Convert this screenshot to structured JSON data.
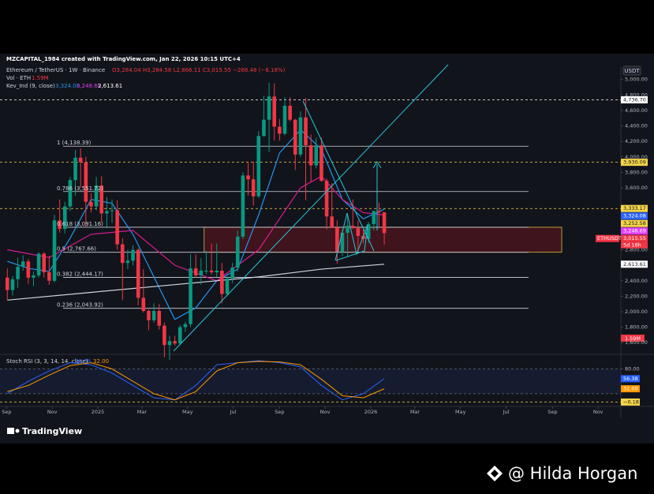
{
  "chart_data": {
    "type": "candlestick",
    "title": "MZCAPITAL_1984 created with TradingView.com, Jan 22, 2026 10:15 UTC+4",
    "symbol": "Ethereum / TetherUS · 1W · Binance",
    "ohlc_text": "O3,284.04 H3,284.58 L2,866.11 C3,015.55 −268.48 (−8.18%)",
    "volume_text": "Vol · ETH",
    "volume_value": "1.59M",
    "indicator": "Kev_Ind (9, close)",
    "indicator_values": [
      "3,324.08",
      "3,248.69",
      "2,613.61"
    ],
    "currency": "USDT",
    "ylim": [
      1470,
      5160
    ],
    "yticks": [
      {
        "value": 1600,
        "label": "1,600.00"
      },
      {
        "value": 1800,
        "label": "1,800.00"
      },
      {
        "value": 2000,
        "label": "2,000.00"
      },
      {
        "value": 2200,
        "label": "2,200.00"
      },
      {
        "value": 2400,
        "label": "2,400.00"
      },
      {
        "value": 2800,
        "label": "2,800.00"
      },
      {
        "value": 3600,
        "label": "3,600.00"
      },
      {
        "value": 3800,
        "label": "3,800.00"
      },
      {
        "value": 4000,
        "label": "4,000.00"
      },
      {
        "value": 4200,
        "label": "4,200.00"
      },
      {
        "value": 4400,
        "label": "4,400.00"
      },
      {
        "value": 4600,
        "label": "4,600.00"
      },
      {
        "value": 4800,
        "label": "4,800.00"
      },
      {
        "value": 5000,
        "label": "5,000.00"
      }
    ],
    "xlim": [
      -1.4,
      117.2
    ],
    "xticks": [
      {
        "value": -0.14,
        "label": "Sep"
      },
      {
        "value": 8.57,
        "label": "Nov"
      },
      {
        "value": 17.29,
        "label": "2025"
      },
      {
        "value": 25.71,
        "label": "Mar"
      },
      {
        "value": 34.43,
        "label": "May"
      },
      {
        "value": 43.14,
        "label": "Jul"
      },
      {
        "value": 52,
        "label": "Sep"
      },
      {
        "value": 60.71,
        "label": "Nov"
      },
      {
        "value": 69.43,
        "label": "2026"
      },
      {
        "value": 77.86,
        "label": "Mar"
      },
      {
        "value": 86.57,
        "label": "May"
      },
      {
        "value": 95.29,
        "label": "Jul"
      },
      {
        "value": 104.14,
        "label": "Sep"
      },
      {
        "value": 112.86,
        "label": "Nov"
      }
    ],
    "up_color": "#089981",
    "down_color": "#f23645",
    "candles": [
      [
        2440,
        2560,
        2150,
        2280
      ],
      [
        2280,
        2460,
        2210,
        2420
      ],
      [
        2420,
        2700,
        2310,
        2580
      ],
      [
        2580,
        2730,
        2530,
        2650
      ],
      [
        2650,
        2680,
        2360,
        2440
      ],
      [
        2440,
        2520,
        2330,
        2470
      ],
      [
        2470,
        2770,
        2440,
        2750
      ],
      [
        2750,
        2770,
        2440,
        2510
      ],
      [
        2510,
        2720,
        2350,
        2400
      ],
      [
        2400,
        3250,
        2380,
        3180
      ],
      [
        3180,
        3450,
        3020,
        3070
      ],
      [
        3070,
        3420,
        3010,
        3360
      ],
      [
        3360,
        3740,
        3300,
        3700
      ],
      [
        3700,
        4090,
        3500,
        3990
      ],
      [
        3990,
        4110,
        3600,
        3930
      ],
      [
        3930,
        4000,
        3100,
        3420
      ],
      [
        3420,
        3530,
        3280,
        3360
      ],
      [
        3360,
        3740,
        3310,
        3630
      ],
      [
        3630,
        3750,
        3160,
        3270
      ],
      [
        3270,
        3480,
        3080,
        3300
      ],
      [
        3300,
        3450,
        3150,
        3310
      ],
      [
        3310,
        3440,
        2800,
        2870
      ],
      [
        2870,
        2950,
        2150,
        2630
      ],
      [
        2630,
        2800,
        2550,
        2660
      ],
      [
        2660,
        2860,
        2600,
        2800
      ],
      [
        2800,
        2820,
        2080,
        2180
      ],
      [
        2180,
        2550,
        1990,
        2010
      ],
      [
        2010,
        2030,
        1760,
        1890
      ],
      [
        1890,
        2110,
        1860,
        2010
      ],
      [
        2010,
        2100,
        1770,
        1820
      ],
      [
        1820,
        1860,
        1410,
        1570
      ],
      [
        1570,
        1690,
        1380,
        1620
      ],
      [
        1620,
        1690,
        1560,
        1590
      ],
      [
        1590,
        1830,
        1570,
        1800
      ],
      [
        1800,
        1870,
        1740,
        1840
      ],
      [
        1840,
        2740,
        1800,
        2560
      ],
      [
        2560,
        2740,
        2440,
        2470
      ],
      [
        2470,
        2690,
        2350,
        2530
      ],
      [
        2530,
        2790,
        2490,
        2530
      ],
      [
        2530,
        2880,
        2480,
        2510
      ],
      [
        2510,
        2880,
        2450,
        2530
      ],
      [
        2530,
        2630,
        2110,
        2230
      ],
      [
        2230,
        2460,
        2200,
        2430
      ],
      [
        2430,
        2630,
        2370,
        2570
      ],
      [
        2570,
        3050,
        2520,
        2970
      ],
      [
        2970,
        3800,
        2940,
        3760
      ],
      [
        3760,
        3940,
        3500,
        3710
      ],
      [
        3710,
        3940,
        3370,
        3490
      ],
      [
        3490,
        4330,
        3470,
        4270
      ],
      [
        4270,
        4790,
        4260,
        4480
      ],
      [
        4480,
        4960,
        4060,
        4780
      ],
      [
        4780,
        4950,
        4210,
        4390
      ],
      [
        4390,
        4490,
        4210,
        4300
      ],
      [
        4300,
        4770,
        4280,
        4660
      ],
      [
        4660,
        4770,
        4460,
        4480
      ],
      [
        4480,
        4490,
        3830,
        4030
      ],
      [
        4030,
        4590,
        4000,
        4510
      ],
      [
        4510,
        4760,
        3440,
        4150
      ],
      [
        4150,
        4290,
        3680,
        3890
      ],
      [
        3890,
        4250,
        3850,
        4150
      ],
      [
        4150,
        4250,
        3680,
        3690
      ],
      [
        3690,
        3720,
        3060,
        3230
      ],
      [
        3230,
        3660,
        3080,
        3090
      ],
      [
        3090,
        3180,
        2620,
        2770
      ],
      [
        2770,
        3060,
        2720,
        3020
      ],
      [
        3020,
        3240,
        2720,
        3110
      ],
      [
        3110,
        3450,
        3070,
        3080
      ],
      [
        3080,
        3180,
        2780,
        2980
      ],
      [
        2980,
        3060,
        2880,
        2940
      ],
      [
        2940,
        3160,
        2890,
        3130
      ],
      [
        3130,
        3310,
        3050,
        3300
      ],
      [
        3300,
        3410,
        3100,
        3284.04
      ],
      [
        3284.04,
        3284.58,
        2866.11,
        3015.55
      ]
    ],
    "series": [
      {
        "color": "#2196f3",
        "x": [
          0,
          4,
          8,
          12,
          16,
          20,
          24,
          28,
          32,
          36,
          40,
          44,
          48,
          52,
          56,
          60,
          64,
          68,
          72
        ],
        "values": [
          2650,
          2560,
          2520,
          2950,
          3450,
          3400,
          3000,
          2450,
          1900,
          2050,
          2400,
          2550,
          3250,
          4050,
          4350,
          4100,
          3450,
          3200,
          3324.08
        ]
      },
      {
        "color": "#d81b91",
        "x": [
          0,
          8,
          16,
          24,
          32,
          40,
          48,
          56,
          60,
          64,
          68,
          72
        ],
        "values": [
          2800,
          2700,
          3000,
          3050,
          2600,
          2400,
          2800,
          3600,
          3750,
          3450,
          3280,
          3248.69
        ]
      },
      {
        "color": "#d1d4dc",
        "x": [
          0,
          16,
          32,
          48,
          60,
          72
        ],
        "values": [
          2150,
          2250,
          2350,
          2450,
          2550,
          2613.61
        ]
      }
    ],
    "fib_levels": [
      {
        "value": 4138.39,
        "label": "1 (4,138.39)"
      },
      {
        "value": 3551.72,
        "label": "0.786 (3,551.72)"
      },
      {
        "value": 3091.16,
        "label": "0.618 (3,091.16)"
      },
      {
        "value": 2767.66,
        "label": "0.5 (2,767.66)"
      },
      {
        "value": 2444.17,
        "label": "0.382 (2,444.17)"
      },
      {
        "value": 2043.92,
        "label": "0.236 (2,043.92)"
      }
    ],
    "zone": {
      "x": [
        37.6,
        105.9
      ],
      "y": [
        2767.66,
        3091.16
      ]
    },
    "price_badges": [
      {
        "value": 4736.7,
        "label": "4,736.70",
        "color": "#ffffff",
        "dashed": true
      },
      {
        "value": 3930.09,
        "label": "3,930.09",
        "color": "#f5d547",
        "dashed": true
      },
      {
        "value": 3333.17,
        "label": "3,333.17",
        "color": "#f5d547",
        "dashed": true
      },
      {
        "value": 3324.08,
        "label": "3,324.08",
        "color": "#2962ff",
        "dashed": false
      },
      {
        "value": 3252.58,
        "label": "3,252.58",
        "color": "#f5d547",
        "dashed": false
      },
      {
        "value": 3248.69,
        "label": "3,248.69",
        "color": "#e040fb",
        "dashed": false
      },
      {
        "value": 3015.55,
        "label": "3,015.55",
        "color": "#f23645",
        "dashed": false
      },
      {
        "value": 2613.61,
        "label": "2,613.61",
        "color": "#ffffff",
        "dashed": false
      }
    ],
    "last_symbol": "ETHUSDT",
    "countdown": "5d 18h",
    "rsi": {
      "title": "Stoch RSI (3, 3, 14, 14, close)",
      "ylim": [
        -5,
        100
      ],
      "yticks": [
        {
          "value": 80,
          "label": "80.00"
        }
      ],
      "bands": [
        20,
        80
      ],
      "series": [
        {
          "color": "#2962ff",
          "x": [
            0,
            4,
            8,
            12,
            16,
            20,
            24,
            28,
            32,
            36,
            40,
            44,
            48,
            52,
            56,
            60,
            64,
            68,
            72
          ],
          "values": [
            20,
            50,
            75,
            95,
            90,
            70,
            40,
            10,
            5,
            40,
            90,
            95,
            100,
            95,
            85,
            40,
            5,
            20,
            56.38
          ],
          "value_label": "56.38"
        },
        {
          "color": "#ff9800",
          "x": [
            0,
            4,
            8,
            12,
            16,
            20,
            24,
            28,
            32,
            36,
            40,
            44,
            48,
            52,
            56,
            60,
            64,
            68,
            72
          ],
          "values": [
            25,
            40,
            65,
            88,
            95,
            80,
            50,
            20,
            5,
            25,
            75,
            95,
            98,
            97,
            90,
            55,
            15,
            10,
            32
          ],
          "value_label": "32.00"
        }
      ],
      "level": {
        "value": -0.18,
        "label": "−0.18",
        "color": "#f5d547"
      }
    },
    "brand": "TradingView",
    "watermark": "@ Hilda Horgan"
  }
}
